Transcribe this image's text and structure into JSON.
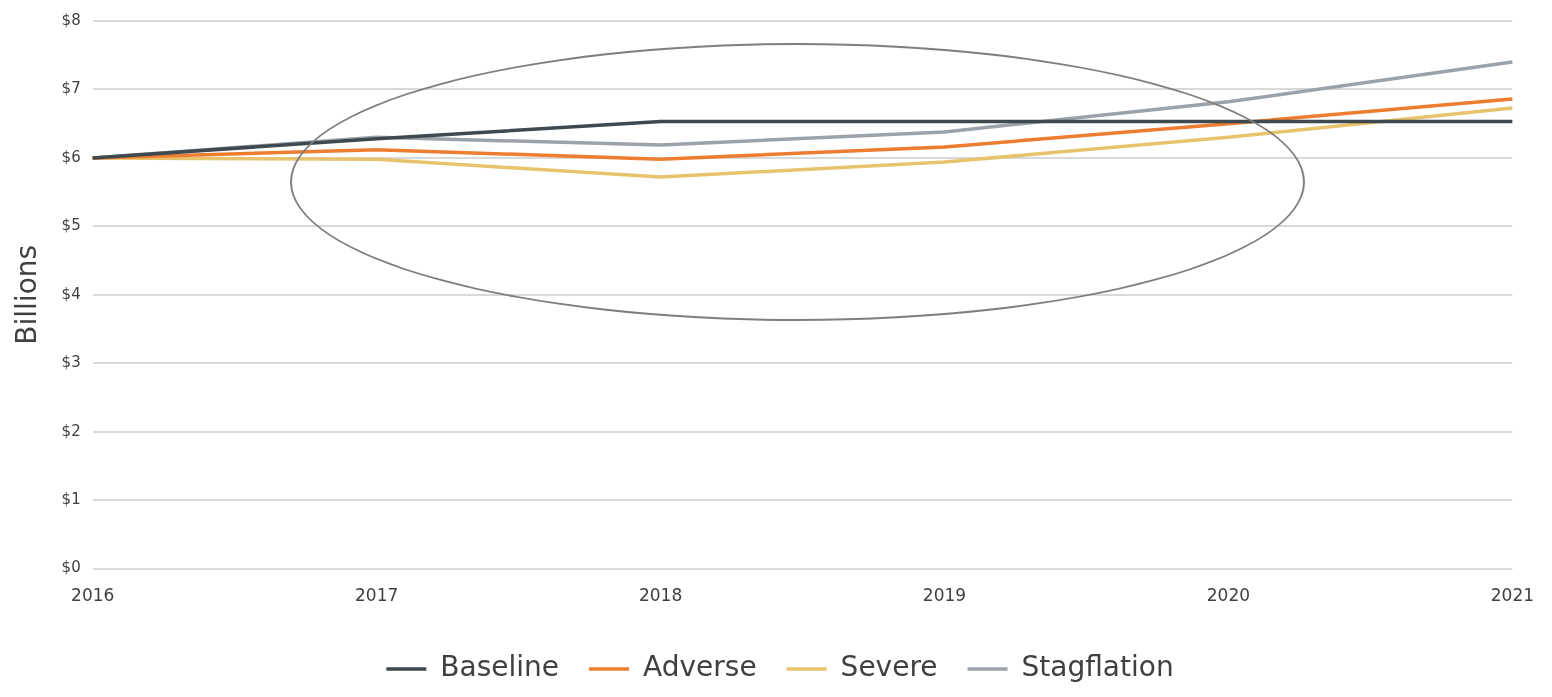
{
  "chart_data": {
    "type": "line",
    "ylabel": "Billions",
    "categories": [
      "2016",
      "2017",
      "2018",
      "2019",
      "2020",
      "2021"
    ],
    "series": [
      {
        "name": "Baseline",
        "color": "#3e4a50",
        "values": [
          6.0,
          6.28,
          6.53,
          6.53,
          6.53,
          6.53
        ]
      },
      {
        "name": "Adverse",
        "color": "#ed7d31",
        "values": [
          6.0,
          6.12,
          5.98,
          6.16,
          6.5,
          6.86
        ]
      },
      {
        "name": "Severe",
        "color": "#e8c36e",
        "values": [
          6.0,
          5.98,
          5.72,
          5.94,
          6.3,
          6.73
        ]
      },
      {
        "name": "Stagflation",
        "color": "#9ba2aa",
        "values": [
          6.0,
          6.3,
          6.19,
          6.38,
          6.82,
          7.4
        ]
      }
    ],
    "ylim": [
      0,
      8
    ],
    "yticks": [
      {
        "value": 0,
        "label": "$0"
      },
      {
        "value": 1,
        "label": "$1"
      },
      {
        "value": 2,
        "label": "$2"
      },
      {
        "value": 3,
        "label": "$3"
      },
      {
        "value": 4,
        "label": "$4"
      },
      {
        "value": 5,
        "label": "$5"
      },
      {
        "value": 6,
        "label": "$6"
      },
      {
        "value": 7,
        "label": "$7"
      },
      {
        "value": 8,
        "label": "$8"
      }
    ],
    "grid": "y",
    "legend": "bottom",
    "marker": "none",
    "line_style": "solid"
  }
}
